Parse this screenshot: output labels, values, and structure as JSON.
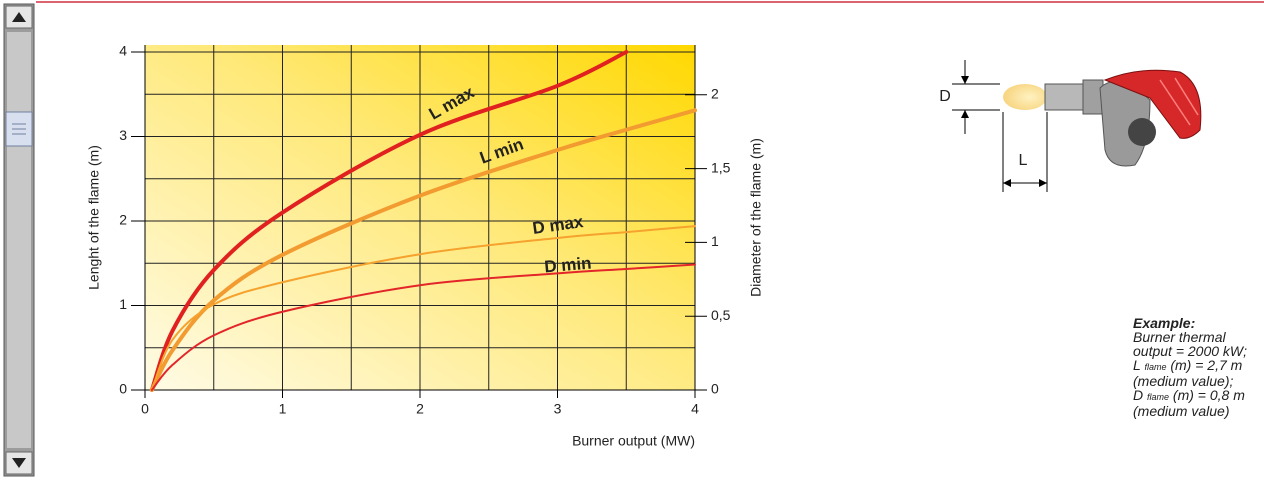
{
  "chart_data": {
    "type": "line",
    "x_label": "Burner output (MW)",
    "y_label": "Lenght of the flame (m)",
    "y2_label": "Diameter of the flame (m)",
    "x": [
      0.05,
      0.2,
      0.5,
      1,
      2,
      3,
      3.5,
      4
    ],
    "series": [
      {
        "name": "L max",
        "color": "#e1211f",
        "width": 4,
        "values": [
          0,
          0.7,
          1.42,
          2.1,
          3.02,
          3.6,
          4.0,
          null
        ]
      },
      {
        "name": "L min",
        "color": "#f29b30",
        "width": 4,
        "values": [
          0,
          0.47,
          1.06,
          1.6,
          2.3,
          2.84,
          3.08,
          3.31
        ]
      },
      {
        "name": "D max",
        "color": "#f5a22e",
        "width": 2,
        "axis": "y2",
        "values": [
          0,
          0.34,
          0.58,
          0.73,
          0.92,
          1.03,
          1.07,
          1.11
        ]
      },
      {
        "name": "D min",
        "color": "#e2262a",
        "width": 2,
        "axis": "y2",
        "values": [
          0,
          0.17,
          0.37,
          0.53,
          0.71,
          0.79,
          0.82,
          0.85
        ]
      }
    ],
    "xlim": [
      0,
      4
    ],
    "xticks": [
      0,
      1,
      2,
      3,
      4
    ],
    "ylim": [
      0,
      4
    ],
    "yticks": [
      0,
      1,
      2,
      3,
      4
    ],
    "y2lim": [
      0,
      2.29
    ],
    "y2ticks": [
      0,
      {
        "value": 0.5,
        "label": "0,5"
      },
      1,
      {
        "value": 1.5,
        "label": "1,5"
      },
      2
    ],
    "minor_xticks": [
      0.5,
      1.5,
      2.5,
      3.5
    ],
    "minor_yticks": [
      0.5,
      1.5,
      2.5,
      3.5
    ],
    "grid": true
  },
  "diagram": {
    "height_label": "D",
    "length_label": "L"
  },
  "example": {
    "heading": "Example:",
    "line1": "Burner thermal output = 2000 kW;",
    "line2": {
      "symbol": "L",
      "subscript": "flame",
      "text": "(m) = 2,7 m (medium value);"
    },
    "line3": {
      "symbol": "D",
      "subscript": "flame",
      "text": "(m) = 0,8 m (medium value)"
    }
  }
}
